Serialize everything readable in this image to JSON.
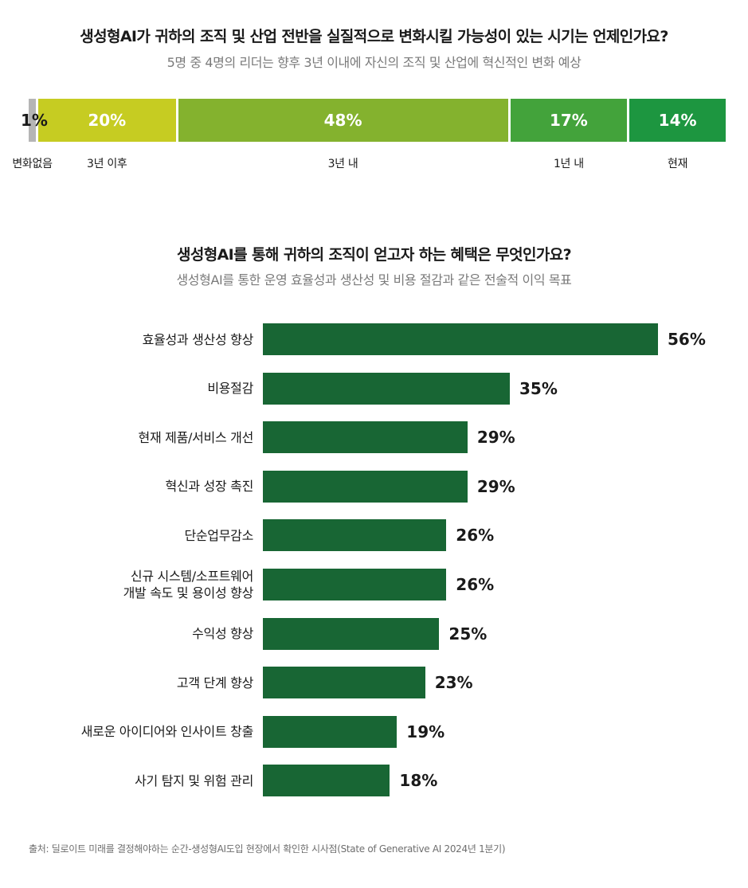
{
  "chart_data": [
    {
      "type": "bar",
      "orientation": "horizontal-stacked",
      "title": "생성형AI가 귀하의 조직 및 산업 전반을 실질적으로 변화시킬 가능성이 있는 시기는 언제인가요?",
      "subtitle": "5명 중 4명의 리더는 향후 3년 이내에 자신의 조직 및 산업에 혁신적인 변화 예상",
      "categories": [
        "변화없음",
        "3년 이후",
        "3년 내",
        "1년 내",
        "현재"
      ],
      "values": [
        1,
        20,
        48,
        17,
        14
      ],
      "value_labels": [
        "1%",
        "20%",
        "48%",
        "17%",
        "14%"
      ],
      "colors": [
        "#b5b5b5",
        "#c6cc22",
        "#84b22e",
        "#43a33b",
        "#1d9640"
      ],
      "label_colors": [
        "#1a1a1a",
        "#ffffff",
        "#ffffff",
        "#ffffff",
        "#ffffff"
      ]
    },
    {
      "type": "bar",
      "orientation": "horizontal",
      "title": "생성형AI를 통해 귀하의 조직이 얻고자 하는 혜택은 무엇인가요?",
      "subtitle": "생성형AI를 통한 운영 효율성과 생산성 및 비용 절감과 같은 전술적 이익 목표",
      "categories": [
        "효율성과 생산성 향상",
        "비용절감",
        "현재 제품/서비스 개선",
        "혁신과 성장 촉진",
        "단순업무감소",
        "신규 시스템/소프트웨어\n개발 속도 및 용이성 향상",
        "수익성 향상",
        "고객 단계 향상",
        "새로운 아이디어와 인사이트 창출",
        "사기 탐지 및 위험 관리"
      ],
      "values": [
        56,
        35,
        29,
        29,
        26,
        26,
        25,
        23,
        19,
        18
      ],
      "value_labels": [
        "56%",
        "35%",
        "29%",
        "29%",
        "26%",
        "26%",
        "25%",
        "23%",
        "19%",
        "18%"
      ],
      "color": "#186634"
    }
  ],
  "source": "출처: 딜로이트 미래를 결정해야하는 순간-생성형AI도입 현장에서 확인한 시사점(State of Generative AI 2024년 1분기)"
}
